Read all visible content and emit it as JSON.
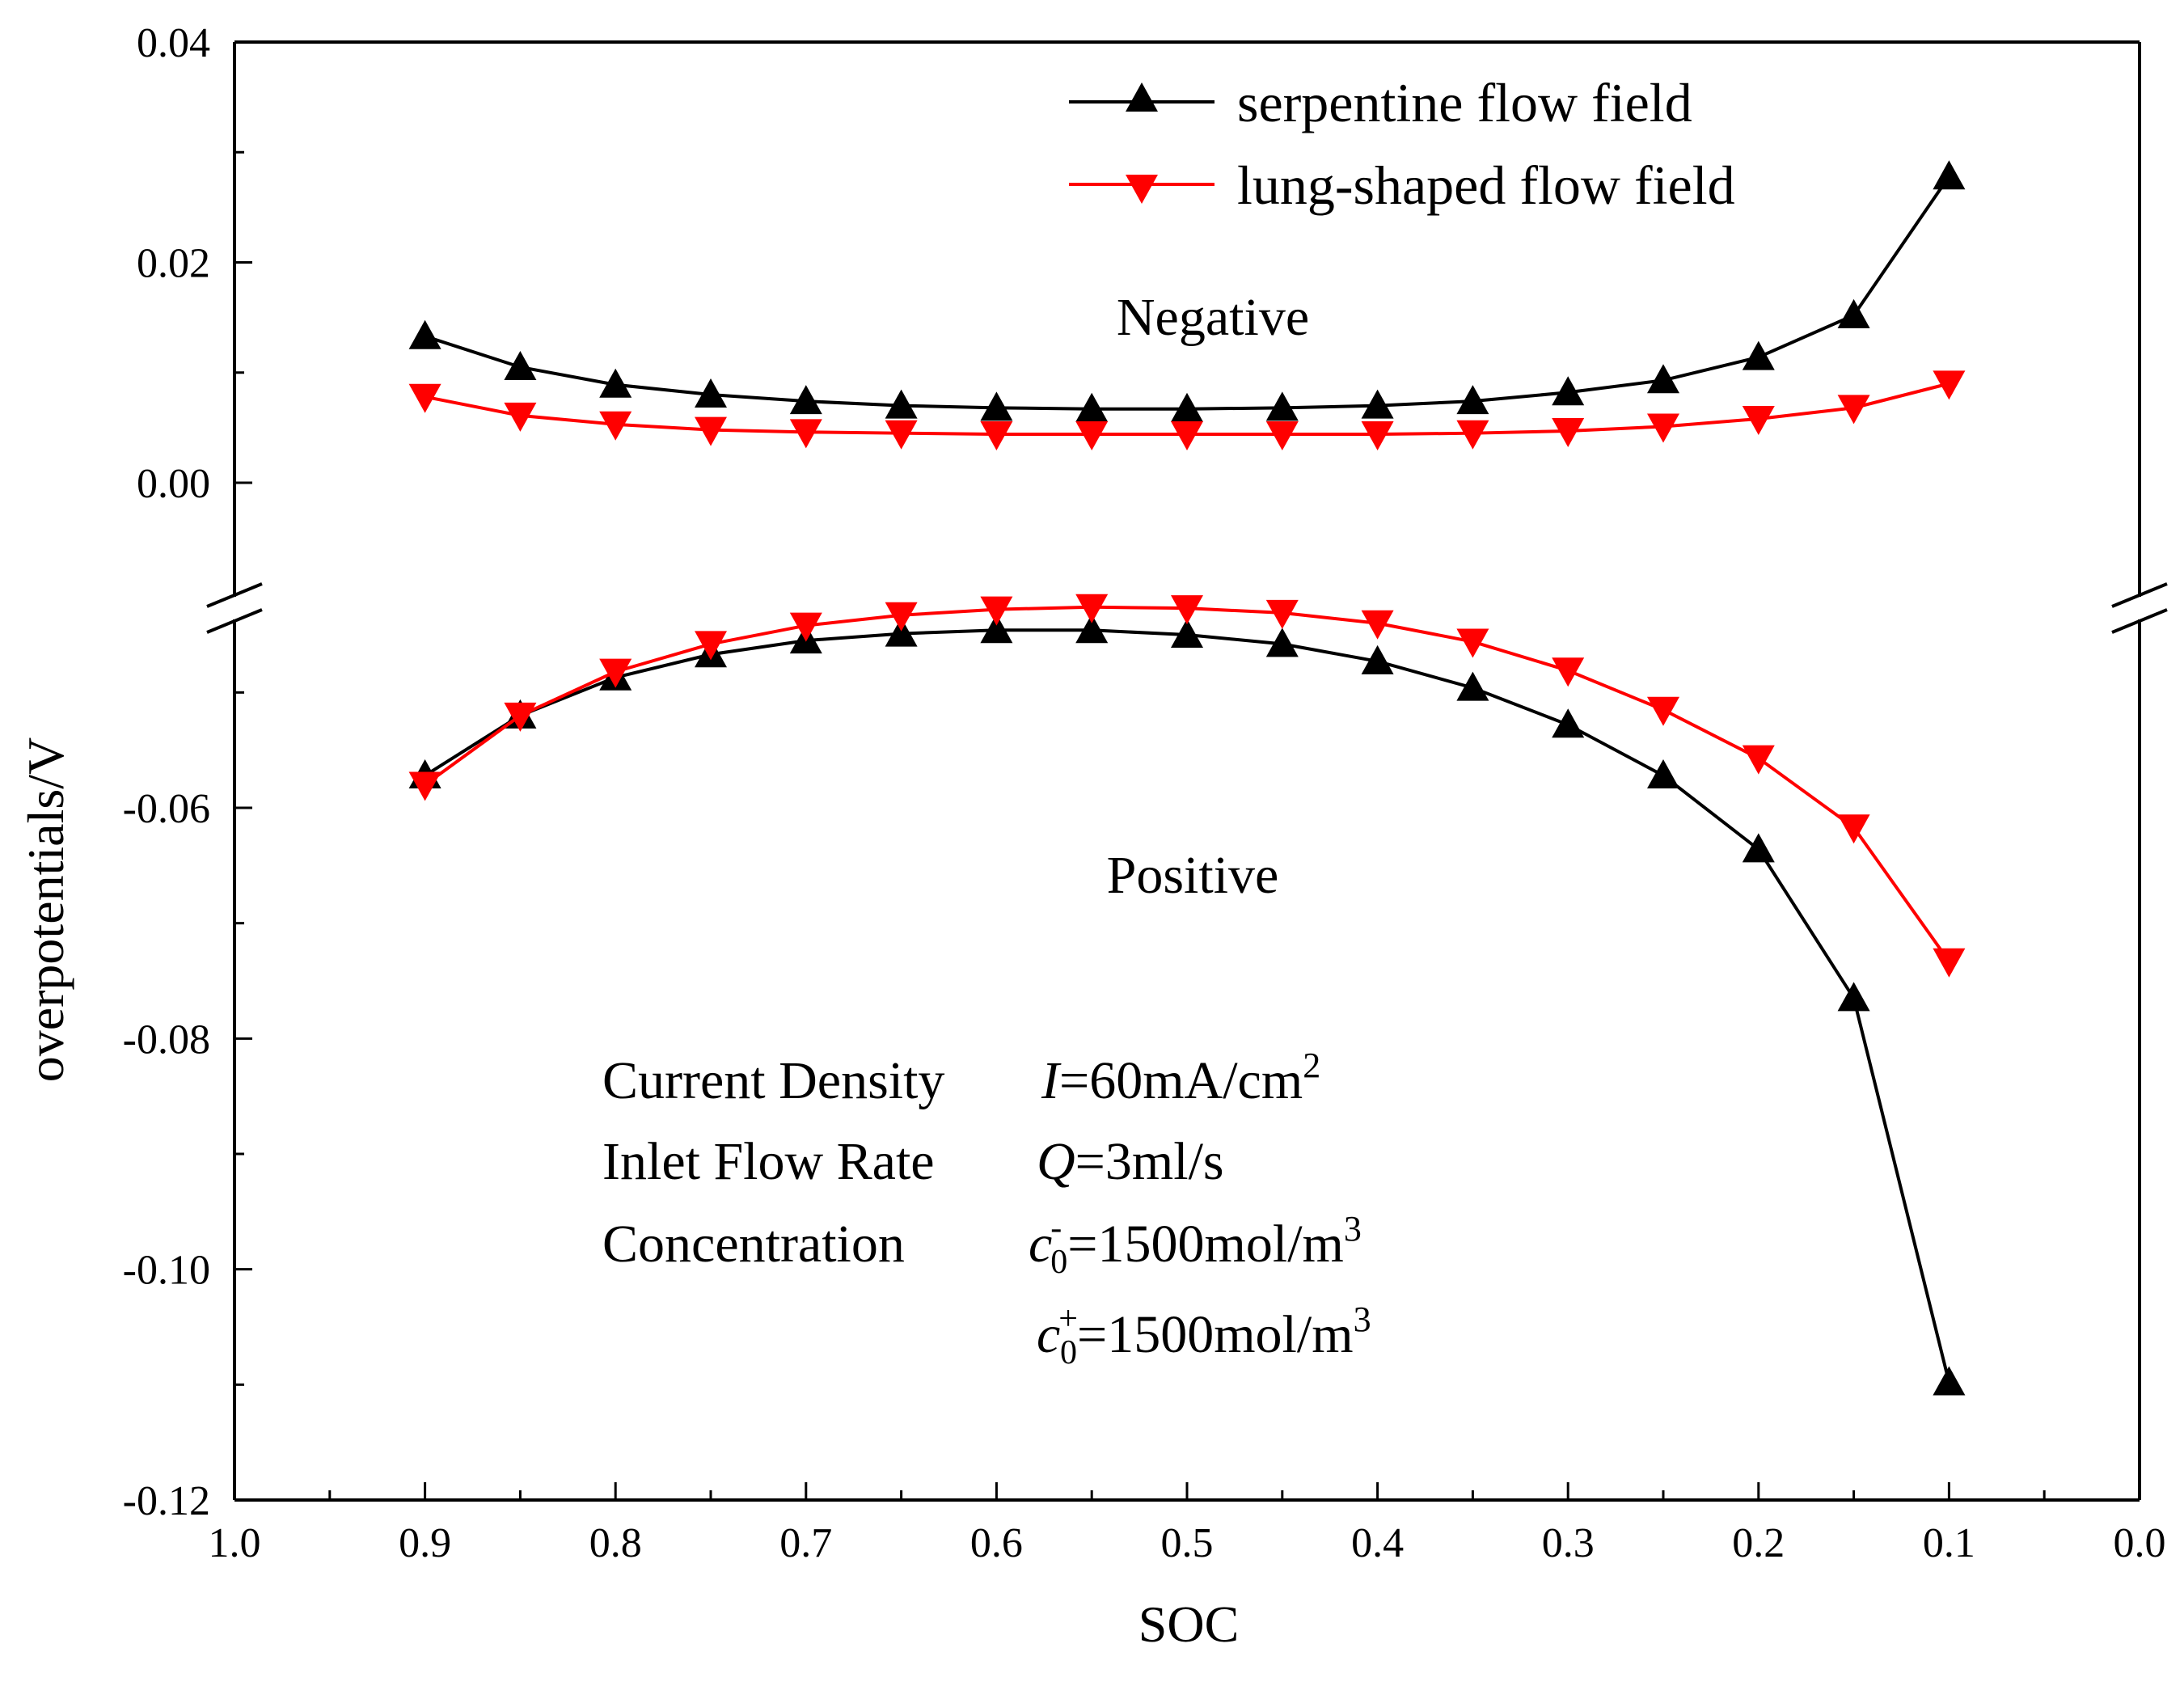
{
  "chart_data": {
    "type": "line",
    "xlabel": "SOC",
    "ylabel": "overpotentials/V",
    "xlim": [
      1.0,
      0.0
    ],
    "x_reversed": true,
    "ylim": [
      -0.12,
      0.04
    ],
    "y_axis_break": true,
    "x_ticks": [
      "1.0",
      "0.9",
      "0.8",
      "0.7",
      "0.6",
      "0.5",
      "0.4",
      "0.3",
      "0.2",
      "0.1",
      "0.0"
    ],
    "y_ticks": [
      "0.04",
      "0.02",
      "0.00",
      "-0.06",
      "-0.08",
      "-0.10",
      "-0.12"
    ],
    "grid": false,
    "legend_position": "top-right",
    "x": [
      0.9,
      0.85,
      0.8,
      0.75,
      0.7,
      0.65,
      0.6,
      0.55,
      0.5,
      0.45,
      0.4,
      0.35,
      0.3,
      0.25,
      0.2,
      0.15,
      0.1
    ],
    "series": [
      {
        "name": "serpentine flow field",
        "group": "Negative",
        "color": "#000000",
        "marker": "triangle-up",
        "values": [
          0.0133,
          0.0105,
          0.0089,
          0.008,
          0.0074,
          0.007,
          0.0068,
          0.0067,
          0.0067,
          0.0068,
          0.007,
          0.0074,
          0.0082,
          0.0093,
          0.0114,
          0.0152,
          0.0278
        ]
      },
      {
        "name": "lung-shaped flow field",
        "group": "Negative",
        "color": "#ff0000",
        "marker": "triangle-down",
        "values": [
          0.0078,
          0.0061,
          0.0053,
          0.0048,
          0.0046,
          0.0045,
          0.0044,
          0.0044,
          0.0044,
          0.0044,
          0.0044,
          0.0045,
          0.0047,
          0.0051,
          0.0058,
          0.0068,
          0.009
        ]
      },
      {
        "name": "serpentine flow field",
        "group": "Positive",
        "color": "#000000",
        "marker": "triangle-up",
        "values": [
          -0.0572,
          -0.052,
          -0.0487,
          -0.0467,
          -0.0455,
          -0.0449,
          -0.0446,
          -0.0446,
          -0.045,
          -0.0458,
          -0.0473,
          -0.0496,
          -0.0528,
          -0.0572,
          -0.0636,
          -0.0765,
          -0.1098
        ]
      },
      {
        "name": "lung-shaped flow field",
        "group": "Positive",
        "color": "#ff0000",
        "marker": "triangle-down",
        "values": [
          -0.058,
          -0.052,
          -0.0482,
          -0.0458,
          -0.0442,
          -0.0433,
          -0.0428,
          -0.0426,
          -0.0427,
          -0.0431,
          -0.044,
          -0.0456,
          -0.0481,
          -0.0515,
          -0.0557,
          -0.0617,
          -0.0733
        ]
      }
    ],
    "annotations": {
      "negative_label": "Negative",
      "positive_label": "Positive",
      "conditions": {
        "current_label": "Current Density",
        "current_value_var": "I",
        "current_value_rest": "=60mA/cm",
        "current_value_sup": "2",
        "flow_label": "Inlet Flow Rate",
        "flow_value_var": "Q",
        "flow_value_rest": "=3ml/s",
        "conc_label": "Concentration",
        "conc_var": "c",
        "conc1_sup": "-",
        "conc1_sub": "0",
        "conc1_rest": "=1500mol/m",
        "conc1_unit_sup": "3",
        "conc2_sup": "+",
        "conc2_sub": "0",
        "conc2_rest": "=1500mol/m",
        "conc2_unit_sup": "3"
      }
    }
  }
}
